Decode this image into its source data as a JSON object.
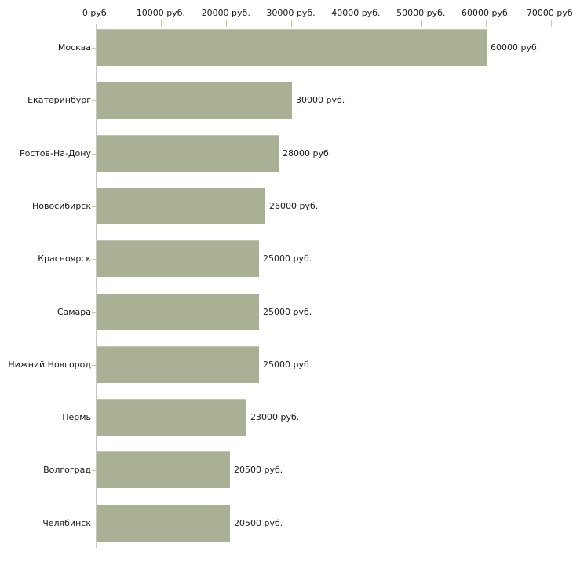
{
  "chart_data": {
    "type": "bar",
    "orientation": "horizontal",
    "title": "",
    "categories": [
      "Москва",
      "Екатеринбург",
      "Ростов-На-Дону",
      "Новосибирск",
      "Красноярск",
      "Самара",
      "Нижний Новгород",
      "Пермь",
      "Волгоград",
      "Челябинск"
    ],
    "values": [
      60000,
      30000,
      28000,
      26000,
      25000,
      25000,
      25000,
      23000,
      20500,
      20500
    ],
    "value_labels": [
      "60000 руб.",
      "30000 руб.",
      "28000 руб.",
      "26000 руб.",
      "25000 руб.",
      "25000 руб.",
      "25000 руб.",
      "23000 руб.",
      "20500 руб.",
      "20500 руб."
    ],
    "unit": "руб.",
    "x_axis": {
      "position": "top",
      "min": 0,
      "max": 70000,
      "tick_values": [
        0,
        10000,
        20000,
        30000,
        40000,
        50000,
        60000,
        70000
      ],
      "tick_labels": [
        "0 руб.",
        "10000 руб.",
        "20000 руб.",
        "30000 руб.",
        "40000 руб.",
        "50000 руб.",
        "60000 руб.",
        "70000 руб."
      ]
    },
    "grid": false,
    "legend": false,
    "colors": {
      "bar_fill": "#aab094",
      "bar_highlight": "#c3c7af",
      "axis_line": "#c6c6c6",
      "tick_mark": "#cfc9a2",
      "text": "#1a1a1a",
      "background": "#ffffff"
    }
  }
}
